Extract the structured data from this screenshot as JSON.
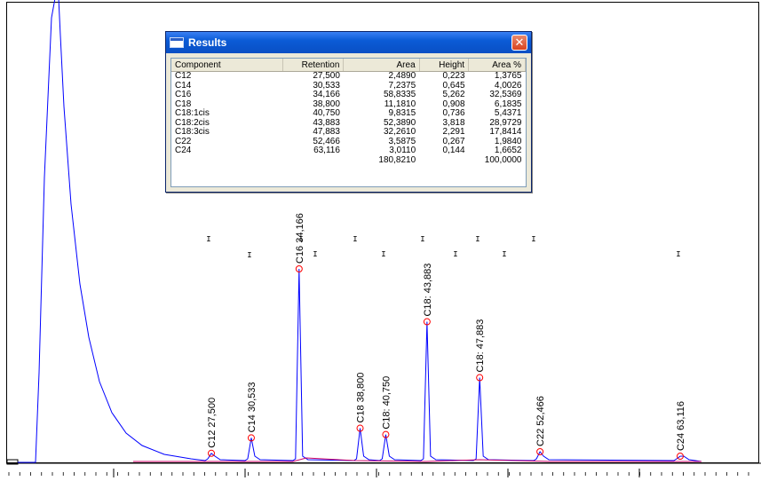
{
  "window": {
    "title": "Results",
    "columns": [
      "Component",
      "Retention",
      "Area",
      "Height",
      "Area %"
    ],
    "rows": [
      [
        "C12",
        "27,500",
        "2,4890",
        "0,223",
        "1,3765"
      ],
      [
        "C14",
        "30,533",
        "7,2375",
        "0,645",
        "4,0026"
      ],
      [
        "C16",
        "34,166",
        "58,8335",
        "5,262",
        "32,5369"
      ],
      [
        "C18",
        "38,800",
        "11,1810",
        "0,908",
        "6,1835"
      ],
      [
        "C18:1cis",
        "40,750",
        "9,8315",
        "0,736",
        "5,4371"
      ],
      [
        "C18:2cis",
        "43,883",
        "52,3890",
        "3,818",
        "28,9729"
      ],
      [
        "C18:3cis",
        "47,883",
        "32,2610",
        "2,291",
        "17,8414"
      ],
      [
        "C22",
        "52,466",
        "3,5875",
        "0,267",
        "1,9840"
      ],
      [
        "C24",
        "63,116",
        "3,0110",
        "0,144",
        "1,6652"
      ]
    ],
    "totals": [
      "",
      "",
      "180,8210",
      "",
      "100,0000"
    ]
  },
  "chart_data": {
    "type": "line",
    "title": "",
    "xlabel": "",
    "ylabel": "",
    "grid": false,
    "trace_color": "#0000ff",
    "baseline_color": "#cc0066",
    "marker_color": "#ff0000",
    "peaks": [
      {
        "label": "C12 27,500",
        "retention": 27.5,
        "height": 0.223
      },
      {
        "label": "C14 30,533",
        "retention": 30.533,
        "height": 0.645
      },
      {
        "label": "C16 34,166",
        "retention": 34.166,
        "height": 5.262
      },
      {
        "label": "C18 38,800",
        "retention": 38.8,
        "height": 0.908
      },
      {
        "label": "C18: 40,750",
        "retention": 40.75,
        "height": 0.736
      },
      {
        "label": "C18: 43,883",
        "retention": 43.883,
        "height": 3.818
      },
      {
        "label": "C18: 47,883",
        "retention": 47.883,
        "height": 2.291
      },
      {
        "label": "C22 52,466",
        "retention": 52.466,
        "height": 0.267
      },
      {
        "label": "C24 63,116",
        "retention": 63.116,
        "height": 0.144
      }
    ]
  }
}
